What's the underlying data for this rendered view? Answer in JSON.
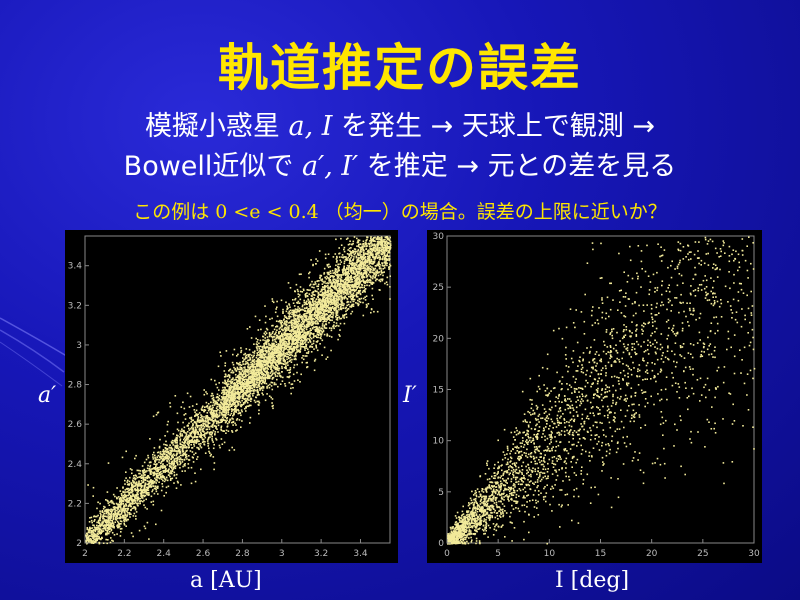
{
  "slide": {
    "title": "軌道推定の誤差",
    "line1_pre": "模擬小惑星 ",
    "line1_var": "a, I",
    "line1_post": " を発生 → 天球上で観測 →",
    "line2_pre": "Bowell近似で ",
    "line2_var": "a′, I′",
    "line2_post": " を推定 → 元との差を見る",
    "note_pre": "この例は ",
    "note_math": "0 <e < 0.4",
    "note_post": " （均一）の場合。誤差の上限に近いか？"
  },
  "colors": {
    "title": "#ffe600",
    "points": "#f2ea9a",
    "background": "#1717b8"
  },
  "chart_data": [
    {
      "type": "scatter",
      "xlabel": "a [AU]",
      "ylabel": "a′",
      "xlim": [
        2,
        3.55
      ],
      "ylim": [
        2,
        3.55
      ],
      "xticks": [
        "2",
        "2.2",
        "2.4",
        "2.6",
        "2.8",
        "3",
        "3.2",
        "3.4"
      ],
      "yticks": [
        "2",
        "2.2",
        "2.4",
        "2.6",
        "2.8",
        "3",
        "3.2",
        "3.4"
      ],
      "n_points": 7000,
      "trend": "a′ ≈ a",
      "point_color": "#f2ea9a"
    },
    {
      "type": "scatter",
      "xlabel": "I [deg]",
      "ylabel": "I′",
      "xlim": [
        0,
        30
      ],
      "ylim": [
        0,
        30
      ],
      "xticks": [
        "0",
        "5",
        "10",
        "15",
        "20",
        "25",
        "30"
      ],
      "yticks": [
        "0",
        "5",
        "10",
        "15",
        "20",
        "25",
        "30"
      ],
      "n_points": 3000,
      "trend": "I′ ≈ I, spread increasing with I",
      "point_color": "#f2ea9a"
    }
  ]
}
